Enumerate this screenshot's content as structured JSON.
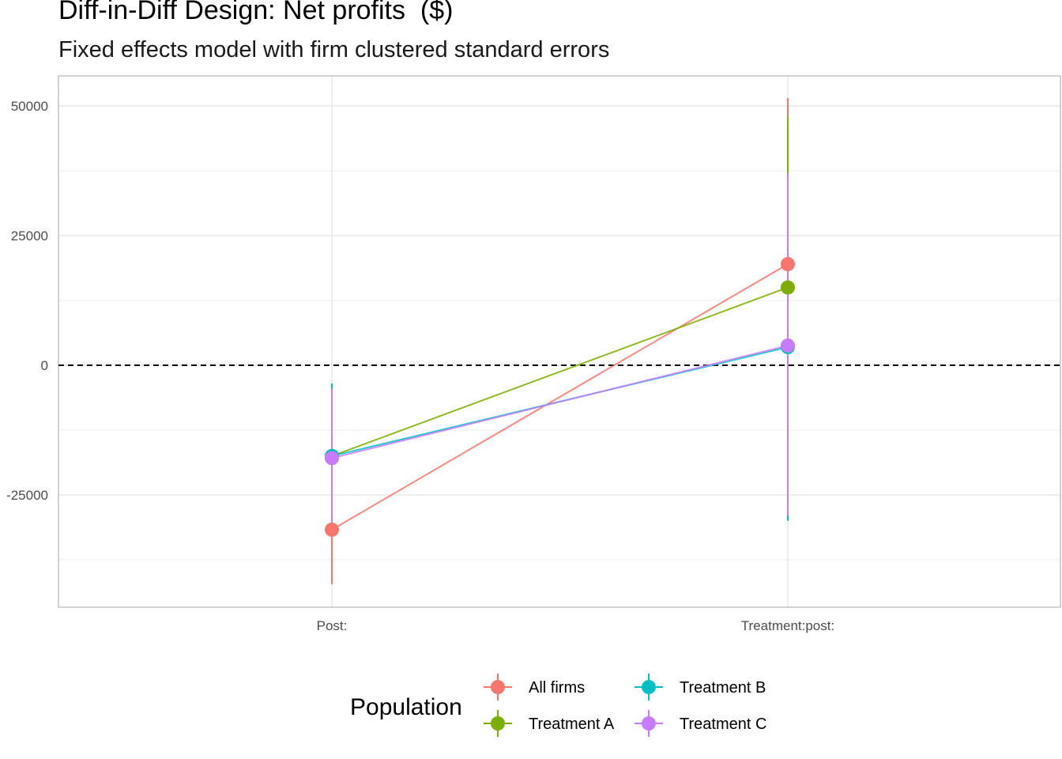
{
  "chart_data": {
    "type": "scatter",
    "title": "Diff-in-Diff Design: Net profits  ($)",
    "subtitle": "Fixed effects model with firm clustered standard errors",
    "xlabel": "",
    "ylabel": "",
    "categories": [
      "Post:",
      "Treatment:post:"
    ],
    "ylim": [
      -46000,
      56000
    ],
    "yticks": [
      -25000,
      0,
      25000,
      50000
    ],
    "grid": true,
    "reference_line": {
      "y": 0,
      "style": "dashed"
    },
    "legend": {
      "title": "Population",
      "position": "bottom"
    },
    "series": [
      {
        "name": "All firms",
        "color": "#F8766D",
        "values": [
          -31700,
          19500
        ],
        "lower": [
          -42200,
          -12000
        ],
        "upper": [
          -21500,
          51500
        ]
      },
      {
        "name": "Treatment A",
        "color": "#7CAE00",
        "values": [
          -17500,
          15000
        ],
        "lower": [
          -30000,
          -15000
        ],
        "upper": [
          -4000,
          48000
        ]
      },
      {
        "name": "Treatment B",
        "color": "#00BFC4",
        "values": [
          -17500,
          3500
        ],
        "lower": [
          -30500,
          -30000
        ],
        "upper": [
          -3500,
          37000
        ]
      },
      {
        "name": "Treatment C",
        "color": "#C77CFF",
        "values": [
          -17900,
          3800
        ],
        "lower": [
          -31000,
          -29000
        ],
        "upper": [
          -4500,
          37000
        ]
      }
    ]
  }
}
